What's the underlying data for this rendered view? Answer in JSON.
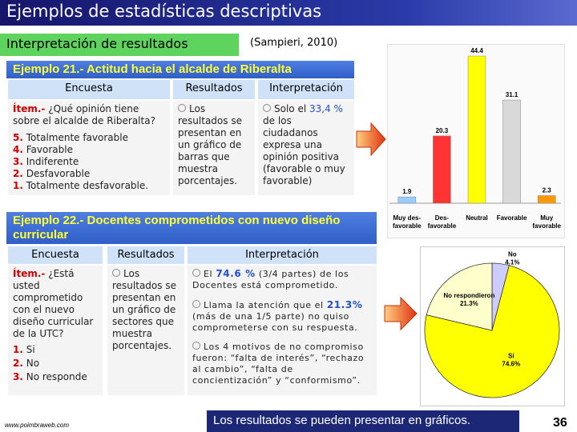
{
  "header": {
    "title": "Ejemplos de estadísticas descriptivas",
    "subtitle": "Interpretación de resultados",
    "citation": "(Sampieri, 2010)"
  },
  "example1": {
    "title": "Ejemplo 21.- Actitud hacia el alcalde de Riberalta",
    "columns": [
      "Encuesta",
      "Resultados",
      "Interpretación"
    ],
    "item_label": "Ítem.-",
    "item_question": "¿Qué opinión tiene sobre el alcalde de Riberalta?",
    "options": [
      {
        "number": "5.",
        "text": "Totalmente favorable"
      },
      {
        "number": "4.",
        "text": "Favorable"
      },
      {
        "number": "3.",
        "text": "Indiferente"
      },
      {
        "number": "2.",
        "text": "Desfavorable"
      },
      {
        "number": "1.",
        "text": "Totalmente desfavorable."
      }
    ],
    "results": "Los resultados se presentan en un gráfico de barras que muestra porcentajes.",
    "interpretation": {
      "before": "Solo el",
      "highlight": "33,4 %",
      "after": "de los ciudadanos expresa una opinión positiva (favorable o muy favorable)"
    }
  },
  "example2": {
    "title": "Ejemplo 22.- Docentes comprometidos con nuevo diseño curricular",
    "columns": [
      "Encuesta",
      "Resultados",
      "Interpretación"
    ],
    "item_label": "Ítem.-",
    "item_question": "¿Está usted comprometido con el nuevo diseño curricular de la UTC?",
    "options": [
      {
        "number": "1.",
        "text": "Si"
      },
      {
        "number": "2.",
        "text": "No"
      },
      {
        "number": "3.",
        "text": "No responde"
      }
    ],
    "results": "Los resultados se presentan en un gráfico de sectores que muestra porcentajes.",
    "interpretation": [
      {
        "before": "El",
        "highlight": "74.6 %",
        "after": "(3/4 partes) de los Docentes está comprometido."
      },
      {
        "before": "Llama la atención que el",
        "highlight": "21.3%",
        "after": "(más de una 1/5 parte) no quiso comprometerse con su respuesta."
      },
      {
        "text": "Los 4 motivos de no compromiso fueron: “falta de interés”, “rechazo al cambio”, “falta de concientización” y “conformismo”."
      }
    ]
  },
  "chart_data": [
    {
      "type": "bar",
      "categories": [
        "Muy des-favorable",
        "Des-favorable",
        "Neutral",
        "Favorable",
        "Muy favorable"
      ],
      "values": [
        1.9,
        20.3,
        44.4,
        31.1,
        2.3
      ],
      "colors": [
        "#99ccff",
        "#ff3333",
        "#ffff00",
        "#d9d9d9",
        "#ff9900"
      ]
    },
    {
      "type": "pie",
      "categories": [
        "No",
        "Sí",
        "No respondieron"
      ],
      "values": [
        4.1,
        74.6,
        21.3
      ],
      "value_labels": [
        "4.1%",
        "74.6%",
        "21.3%"
      ],
      "colors": [
        "#ccccff",
        "#ffff00",
        "#ffffcc"
      ]
    }
  ],
  "footer": {
    "conclusion": "Los resultados se pueden presentar en gráficos.",
    "website": "www.poimbraweb.com",
    "page_number": "36"
  }
}
